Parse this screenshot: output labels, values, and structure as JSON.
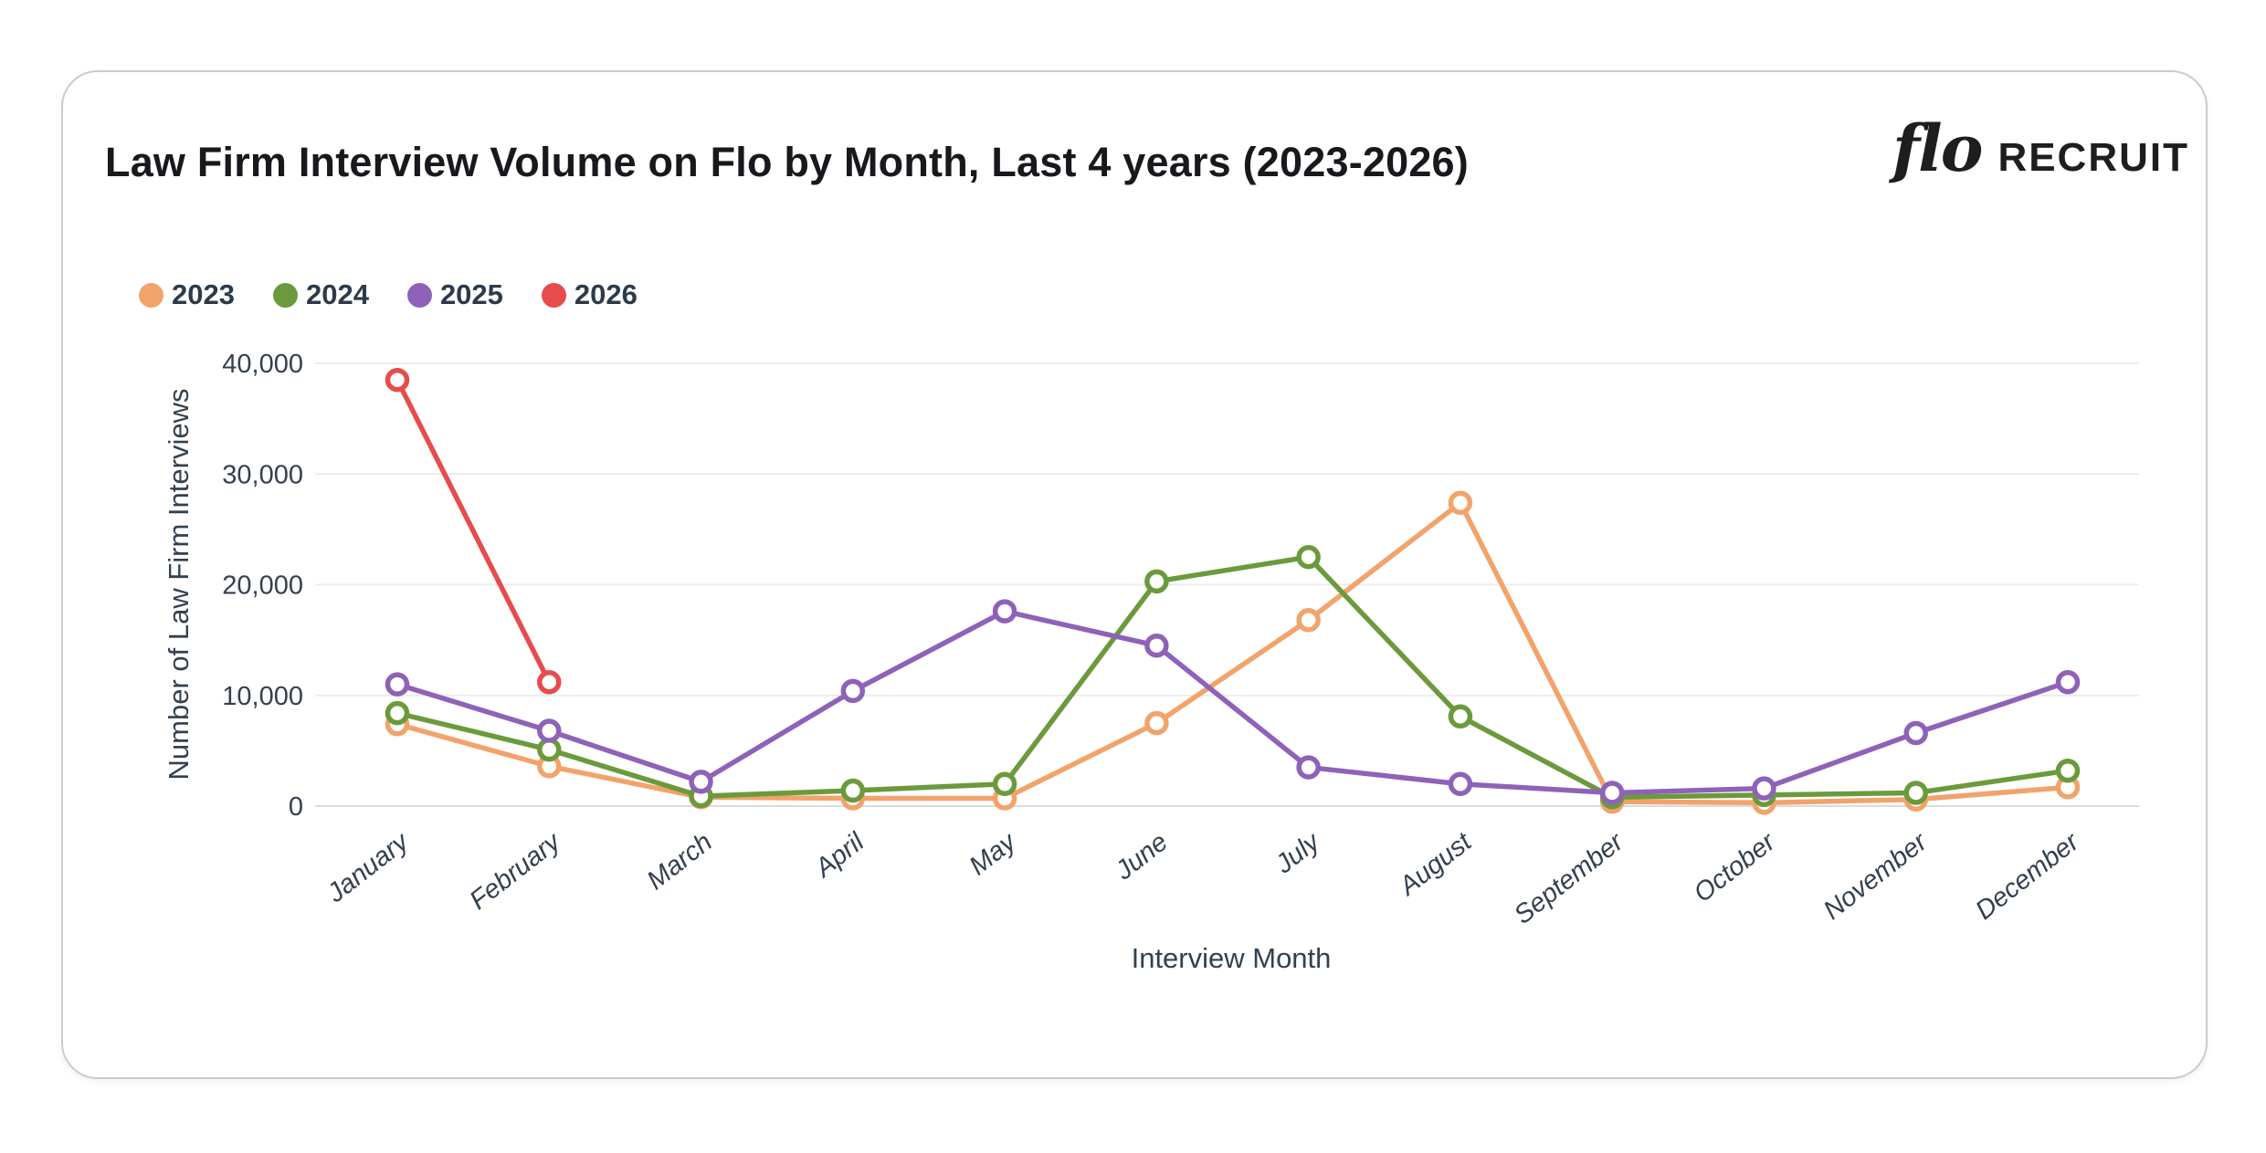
{
  "brand": {
    "logo_script": "flo",
    "logo_text": "RECRUIT"
  },
  "chart_data": {
    "type": "line",
    "title": "Law Firm Interview Volume on Flo by Month, Last 4 years (2023-2026)",
    "xlabel": "Interview Month",
    "ylabel": "Number of Law Firm Interviews",
    "categories": [
      "January",
      "February",
      "March",
      "April",
      "May",
      "June",
      "July",
      "August",
      "September",
      "October",
      "November",
      "December"
    ],
    "ylim": [
      0,
      40000
    ],
    "yticks": [
      {
        "value": 0,
        "label": "0"
      },
      {
        "value": 10000,
        "label": "10,000"
      },
      {
        "value": 20000,
        "label": "20,000"
      },
      {
        "value": 30000,
        "label": "30,000"
      },
      {
        "value": 40000,
        "label": "40,000"
      }
    ],
    "grid": true,
    "legend_position": "top-left",
    "series": [
      {
        "name": "2023",
        "color": "#F2A36B",
        "values": [
          7400,
          3600,
          800,
          700,
          700,
          7500,
          16800,
          27400,
          400,
          300,
          600,
          1700
        ]
      },
      {
        "name": "2024",
        "color": "#6B9A3C",
        "values": [
          8400,
          5100,
          900,
          1400,
          2000,
          20300,
          22500,
          8100,
          800,
          1000,
          1200,
          3200
        ]
      },
      {
        "name": "2025",
        "color": "#8E62B8",
        "values": [
          11000,
          6800,
          2200,
          10400,
          17600,
          14500,
          3500,
          2000,
          1200,
          1600,
          6600,
          11200
        ]
      },
      {
        "name": "2026",
        "color": "#E74C4C",
        "values": [
          38500,
          11200,
          null,
          null,
          null,
          null,
          null,
          null,
          null,
          null,
          null,
          null
        ]
      }
    ]
  }
}
